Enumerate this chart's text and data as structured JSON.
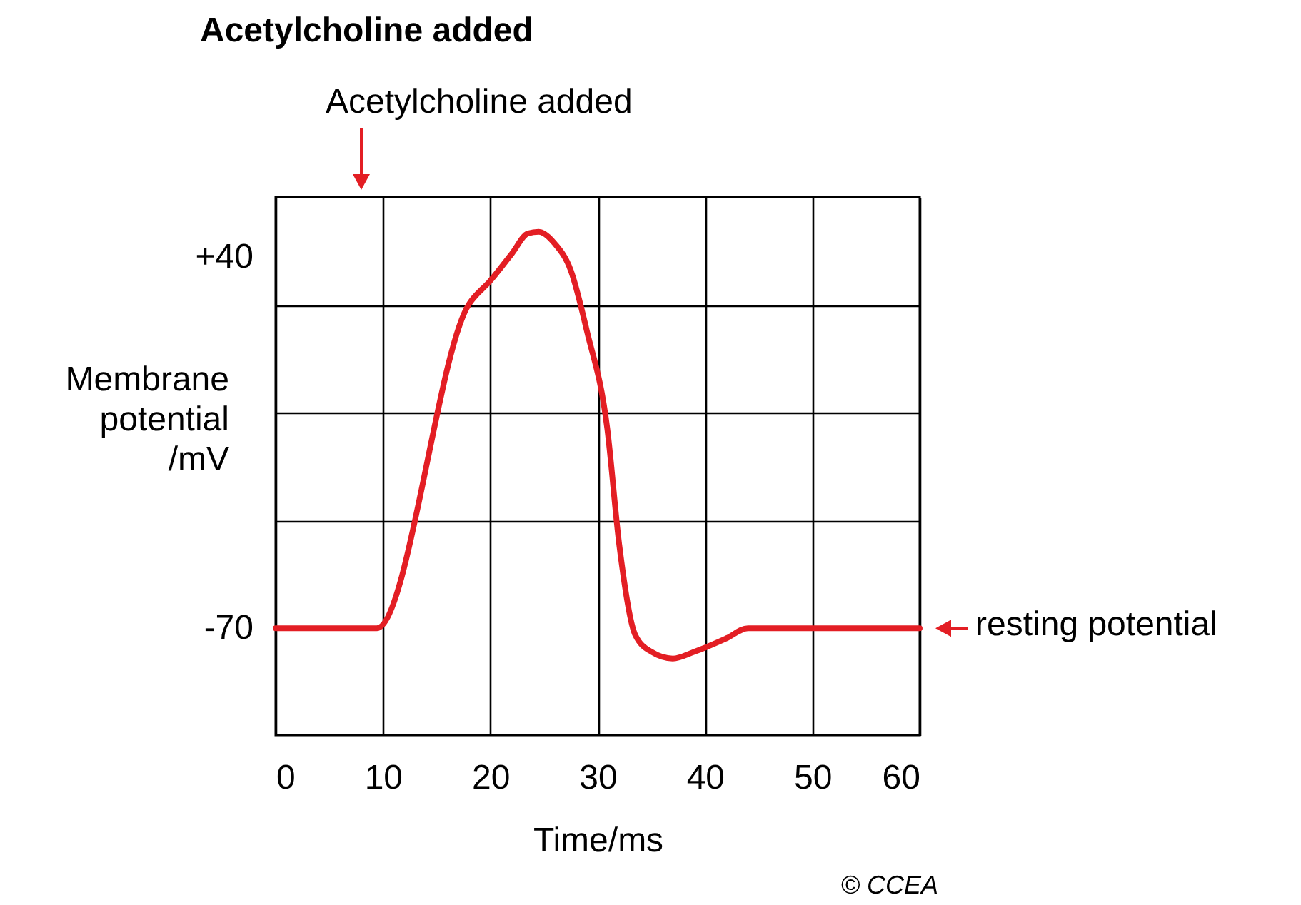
{
  "chart_data": {
    "type": "line",
    "title": "Acetylcholine added",
    "xlabel": "Time/ms",
    "ylabel": "Membrane potential /mV",
    "x": [
      0,
      9.4,
      18,
      20,
      22,
      23.5,
      24.5,
      26,
      27.5,
      29,
      30.9,
      32,
      33.5,
      35,
      37,
      39,
      42,
      44,
      60
    ],
    "series": [
      {
        "color": "#e31e24",
        "values": [
          -70,
          -70,
          26,
          33,
          41,
          47,
          47.5,
          44,
          36,
          18,
          -11,
          -45,
          -72,
          -77,
          -79,
          -77,
          -73,
          -70,
          -70
        ]
      }
    ],
    "xlim": [
      0,
      60
    ],
    "xticks": [
      0,
      10,
      20,
      30,
      40,
      50,
      60
    ],
    "ylim": [
      -101.7,
      57.8
    ],
    "yticks": [
      {
        "value": -70,
        "label": "-70"
      },
      {
        "value": -38.3,
        "label": null
      },
      {
        "value": -6.1,
        "label": null
      },
      {
        "value": 25.6,
        "label": null
      },
      {
        "value": 40,
        "label": "+40"
      }
    ],
    "grid": true,
    "legend": false,
    "marker": "none",
    "line_style": "solid",
    "annotations": [
      "Acetylcholine added",
      {
        "text": "resting potential",
        "x": 60,
        "y": -70
      },
      "© CCEA"
    ]
  }
}
